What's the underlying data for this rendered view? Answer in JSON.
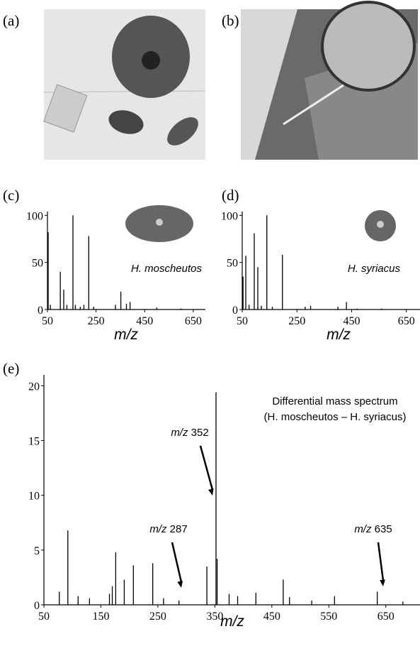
{
  "photos": [
    {
      "label": "(a)"
    },
    {
      "label": "(b)"
    }
  ],
  "chart_data": [
    {
      "type": "stem",
      "panel_label": "(c)",
      "annotation": "H. moscheutos",
      "x_label": "m/z",
      "color": "#000000",
      "x": [
        53,
        62,
        103,
        117,
        130,
        155,
        165,
        185,
        200,
        220,
        240,
        330,
        352,
        375,
        390,
        500,
        600
      ],
      "values": [
        82,
        5,
        40,
        21,
        5,
        100,
        5,
        3,
        5,
        78,
        3,
        5,
        19,
        6,
        8,
        2,
        1
      ],
      "xlim": [
        50,
        700
      ],
      "xticks": [
        50,
        250,
        450,
        650
      ],
      "ylim": [
        0,
        104
      ],
      "yticks": [
        0,
        50,
        100
      ]
    },
    {
      "type": "stem",
      "panel_label": "(d)",
      "annotation": "H. syriacus",
      "x_label": "m/z",
      "color": "#000000",
      "x": [
        53,
        63,
        75,
        94,
        107,
        120,
        140,
        160,
        197,
        280,
        300,
        400,
        431,
        470,
        560
      ],
      "values": [
        35,
        57,
        5,
        81,
        45,
        4,
        100,
        3,
        58,
        3,
        4,
        3,
        8,
        1,
        1
      ],
      "xlim": [
        50,
        700
      ],
      "xticks": [
        50,
        250,
        450,
        650
      ],
      "ylim": [
        0,
        104
      ],
      "yticks": [
        0,
        50,
        100
      ]
    },
    {
      "type": "stem",
      "panel_label": "(e)",
      "x_label": "m/z",
      "color": "#000000",
      "annotation": "Differential mass spectrum",
      "annotation2": "(H. moscheutos – H. syriacus)",
      "arrow_labels": [
        "m/z 352",
        "m/z 287",
        "m/z 635"
      ],
      "x": [
        77,
        92,
        110,
        130,
        165,
        170,
        176,
        191,
        207,
        241,
        260,
        287,
        336,
        352,
        354,
        375,
        390,
        422,
        470,
        481,
        520,
        560,
        635,
        680
      ],
      "values": [
        1.2,
        6.8,
        0.8,
        0.6,
        1.0,
        1.7,
        4.8,
        2.3,
        3.6,
        3.8,
        0.6,
        0.4,
        3.5,
        19.4,
        4.2,
        1.0,
        0.8,
        1.1,
        2.3,
        0.7,
        0.4,
        0.8,
        1.2,
        0.3
      ],
      "xlim": [
        50,
        710
      ],
      "xticks": [
        50,
        150,
        250,
        350,
        450,
        550,
        650
      ],
      "ylim": [
        0,
        21
      ],
      "yticks": [
        0,
        5,
        10,
        15,
        20
      ]
    }
  ]
}
